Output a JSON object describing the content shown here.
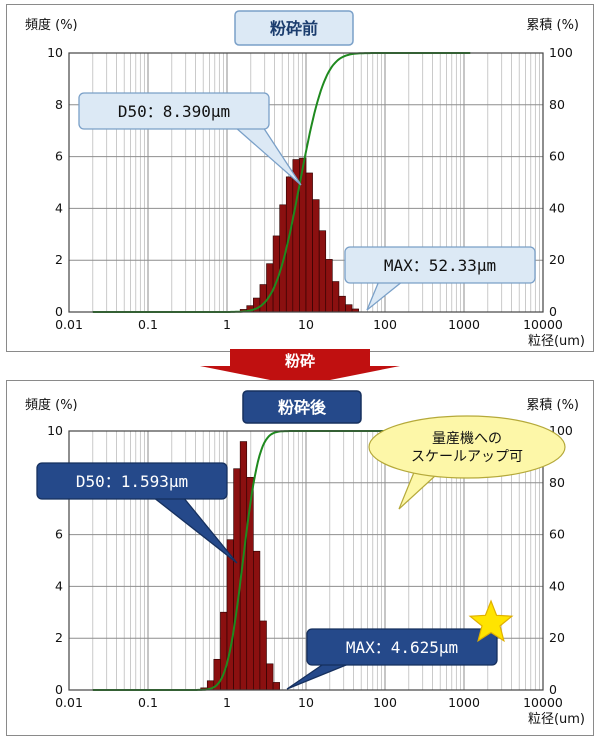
{
  "colors": {
    "bar_fill": "#8b1010",
    "bar_edge": "#2a0000",
    "cumulative_line": "#1f8a1f",
    "label_light_fill": "#dce9f5",
    "label_dark_fill": "#25498a",
    "callout_yellow": "#fdf7a8",
    "arrow_red": "#c01010",
    "star": "#ffe400"
  },
  "arrow": {
    "label": "粉砕"
  },
  "callout": {
    "line1": "量産機への",
    "line2": "スケールアップ可"
  },
  "chart_data": [
    {
      "type": "bar",
      "title": "粉砕前",
      "ylabel_left": "頻度 (%)",
      "ylabel_right": "累積 (%)",
      "xlabel": "粒径(um)",
      "x_scale": "log",
      "xlim": [
        0.01,
        10000
      ],
      "x_ticks": [
        "0.01",
        "0.1",
        "1",
        "10",
        "100",
        "1000",
        "10000"
      ],
      "ylim_left": [
        0,
        10
      ],
      "y_ticks_left": [
        "0",
        "2",
        "4",
        "6",
        "8",
        "10"
      ],
      "ylim_right": [
        0,
        100
      ],
      "y_ticks_right": [
        "0",
        "20",
        "40",
        "60",
        "80",
        "100"
      ],
      "grid": true,
      "distribution": {
        "mode_um": 8.39,
        "peak_percent": 6.0,
        "spread_log10": 0.25,
        "min_um": 1.0,
        "max_um": 52.33
      },
      "cumulative": {
        "x_start_um": 0.02,
        "x_end_um": 1200,
        "d50_um": 8.39,
        "spread_log10": 0.25
      },
      "annotations": {
        "d50": "D50：8.390μm",
        "max": "MAX：52.33μm"
      }
    },
    {
      "type": "bar",
      "title": "粉砕後",
      "ylabel_left": "頻度 (%)",
      "ylabel_right": "累積 (%)",
      "xlabel": "粒径(um)",
      "x_scale": "log",
      "xlim": [
        0.01,
        10000
      ],
      "x_ticks": [
        "0.01",
        "0.1",
        "1",
        "10",
        "100",
        "1000",
        "10000"
      ],
      "ylim_left": [
        0,
        10
      ],
      "y_ticks_left": [
        "0",
        "2",
        "4",
        "6",
        "8",
        "10"
      ],
      "ylim_right": [
        0,
        100
      ],
      "y_ticks_right": [
        "0",
        "20",
        "40",
        "60",
        "80",
        "100"
      ],
      "grid": true,
      "distribution": {
        "mode_um": 1.593,
        "peak_percent": 9.6,
        "spread_log10": 0.16,
        "min_um": 0.38,
        "max_um": 4.625
      },
      "cumulative": {
        "x_start_um": 0.02,
        "x_end_um": 1200,
        "d50_um": 1.593,
        "spread_log10": 0.16
      },
      "annotations": {
        "d50": "D50：1.593μm",
        "max": "MAX：4.625μm"
      }
    }
  ]
}
